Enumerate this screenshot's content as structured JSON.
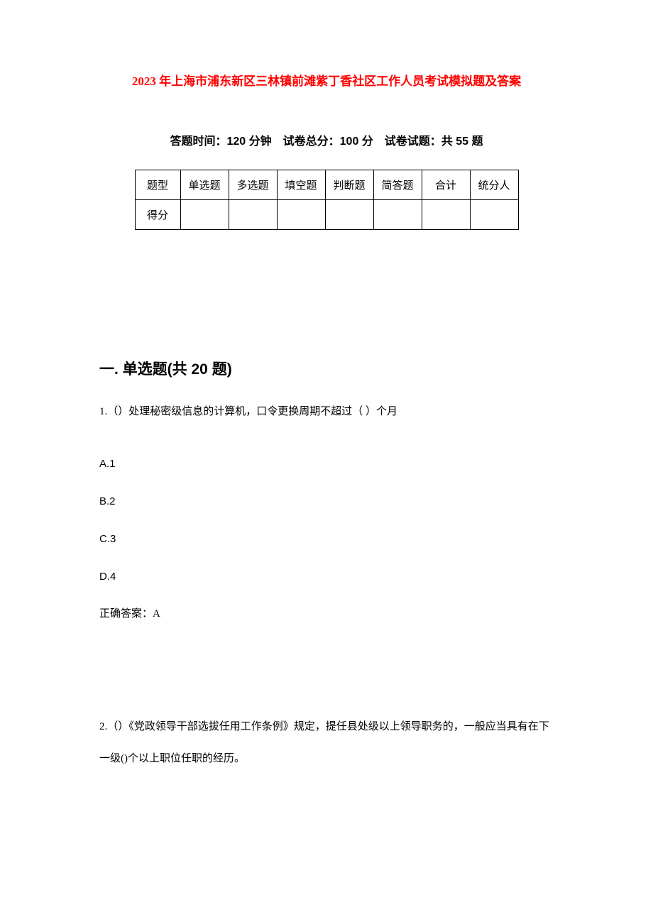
{
  "title": "2023 年上海市浦东新区三林镇前滩紫丁香社区工作人员考试模拟题及答案",
  "exam_info": "答题时间：120 分钟 试卷总分：100 分 试卷试题：共 55 题",
  "score_table": {
    "row1": {
      "label": "题型",
      "c1": "单选题",
      "c2": "多选题",
      "c3": "填空题",
      "c4": "判断题",
      "c5": "简答题",
      "c6": "合计",
      "c7": "统分人"
    },
    "row2": {
      "label": "得分",
      "c1": "",
      "c2": "",
      "c3": "",
      "c4": "",
      "c5": "",
      "c6": "",
      "c7": ""
    }
  },
  "section_heading": "一. 单选题(共 20 题)",
  "q1": {
    "text": "1.（）处理秘密级信息的计算机，口令更换周期不超过（ ）个月",
    "optA": "A.1",
    "optB": "B.2",
    "optC": "C.3",
    "optD": "D.4",
    "answer": "正确答案：A"
  },
  "q2": {
    "text": "2.（）《党政领导干部选拔任用工作条例》规定，提任县处级以上领导职务的，一般应当具有在下一级()个以上职位任职的经历。"
  }
}
